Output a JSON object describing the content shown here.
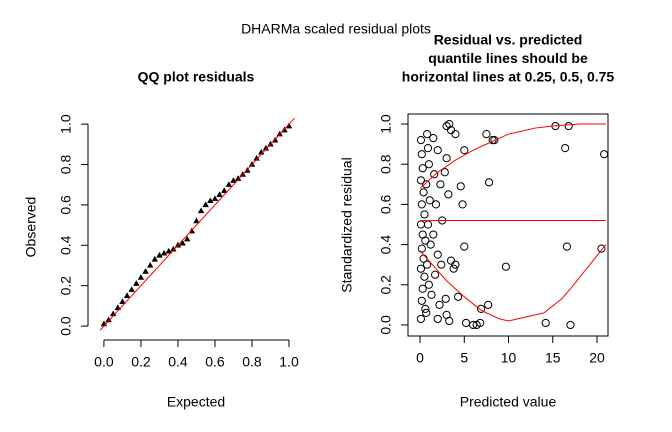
{
  "suptitle": "DHARMa scaled residual plots",
  "chart_data": [
    {
      "type": "scatter",
      "title": [
        "QQ plot residuals"
      ],
      "xlabel": "Expected",
      "ylabel": "Observed",
      "marker": "triangle",
      "color": "#000000",
      "frame": false,
      "x": [
        0.0,
        0.025,
        0.05,
        0.075,
        0.1,
        0.125,
        0.15,
        0.175,
        0.2,
        0.225,
        0.25,
        0.275,
        0.3,
        0.325,
        0.35,
        0.375,
        0.4,
        0.425,
        0.45,
        0.475,
        0.5,
        0.525,
        0.55,
        0.575,
        0.6,
        0.625,
        0.65,
        0.675,
        0.7,
        0.725,
        0.75,
        0.775,
        0.8,
        0.825,
        0.85,
        0.875,
        0.9,
        0.925,
        0.95,
        0.975,
        1.0
      ],
      "values": [
        0.01,
        0.03,
        0.06,
        0.09,
        0.12,
        0.15,
        0.18,
        0.21,
        0.24,
        0.27,
        0.3,
        0.33,
        0.35,
        0.36,
        0.37,
        0.38,
        0.4,
        0.41,
        0.43,
        0.47,
        0.52,
        0.57,
        0.6,
        0.62,
        0.63,
        0.65,
        0.67,
        0.7,
        0.72,
        0.73,
        0.75,
        0.77,
        0.8,
        0.83,
        0.86,
        0.88,
        0.9,
        0.92,
        0.95,
        0.97,
        0.99
      ],
      "lines": [
        {
          "color": "#ff0000",
          "x": [
            -0.02,
            1.03
          ],
          "values": [
            -0.02,
            1.03
          ]
        }
      ],
      "xlim": [
        -0.086,
        1.081
      ],
      "ylim": [
        -0.069,
        1.05
      ],
      "xticks": [
        {
          "value": 0,
          "label": "0.0"
        },
        0.2,
        0.4,
        0.6,
        0.8,
        {
          "value": 1,
          "label": "1.0"
        }
      ],
      "yticks": [
        {
          "value": 0,
          "label": "0.0"
        },
        0.2,
        0.4,
        0.6,
        0.8,
        {
          "value": 1,
          "label": "1.0"
        }
      ]
    },
    {
      "type": "scatter",
      "title": [
        "Residual vs. predicted",
        "quantile lines should be",
        "horizontal lines at 0.25, 0.5, 0.75"
      ],
      "xlabel": "Predicted value",
      "ylabel": "Standardized residual",
      "marker": "circle",
      "color": "#000000",
      "frame": true,
      "x": [
        0.1,
        0.2,
        0.3,
        0.1,
        0.4,
        0.2,
        0.5,
        0.1,
        0.3,
        0.6,
        0.2,
        0.4,
        0.1,
        0.5,
        0.3,
        0.2,
        0.6,
        0.1,
        0.8,
        0.9,
        1.0,
        0.7,
        1.1,
        0.9,
        1.2,
        0.8,
        1.0,
        1.3,
        0.7,
        1.5,
        1.6,
        1.8,
        1.5,
        2.0,
        1.7,
        2.2,
        2.0,
        2.3,
        2.5,
        2.4,
        2.0,
        3.0,
        3.3,
        3.5,
        3.0,
        2.8,
        3.2,
        4.0,
        3.5,
        3.8,
        4.0,
        2.9,
        3.0,
        3.3,
        4.6,
        4.8,
        5.0,
        5.0,
        4.3,
        5.2,
        6.0,
        6.4,
        6.8,
        6.9,
        7.5,
        7.8,
        7.7,
        8.2,
        8.4,
        9.7,
        15.3,
        16.4,
        16.6,
        16.8,
        17.0,
        14.2,
        20.8,
        20.5
      ],
      "values": [
        0.92,
        0.85,
        0.78,
        0.72,
        0.66,
        0.6,
        0.55,
        0.5,
        0.45,
        0.42,
        0.38,
        0.33,
        0.28,
        0.24,
        0.18,
        0.12,
        0.08,
        0.03,
        0.95,
        0.88,
        0.8,
        0.7,
        0.62,
        0.5,
        0.4,
        0.3,
        0.2,
        0.15,
        0.06,
        0.93,
        0.75,
        0.6,
        0.45,
        0.35,
        0.25,
        0.1,
        0.87,
        0.7,
        0.52,
        0.3,
        0.03,
        0.99,
        1.0,
        0.97,
        0.83,
        0.76,
        0.65,
        0.95,
        0.32,
        0.28,
        0.3,
        0.13,
        0.05,
        0.02,
        0.69,
        0.6,
        0.87,
        0.39,
        0.14,
        0.01,
        0.0,
        0.0,
        0.01,
        0.08,
        0.95,
        0.71,
        0.1,
        0.92,
        0.92,
        0.29,
        0.99,
        0.88,
        0.39,
        0.99,
        0.0,
        0.01,
        0.85,
        0.38
      ],
      "lines": [
        {
          "color": "#ff0000",
          "x": [
            0,
            1,
            2,
            4,
            6,
            8,
            10,
            13,
            15,
            18,
            21
          ],
          "values": [
            0.68,
            0.72,
            0.76,
            0.82,
            0.87,
            0.91,
            0.95,
            0.98,
            0.99,
            1.0,
            1.0
          ]
        },
        {
          "color": "#ff0000",
          "x": [
            0,
            21
          ],
          "values": [
            0.52,
            0.52
          ]
        },
        {
          "color": "#ff0000",
          "x": [
            0,
            1,
            3,
            5,
            7,
            9,
            10,
            12,
            14,
            16,
            17,
            19,
            21
          ],
          "values": [
            0.37,
            0.32,
            0.22,
            0.14,
            0.07,
            0.03,
            0.02,
            0.04,
            0.06,
            0.13,
            0.18,
            0.29,
            0.4
          ]
        }
      ],
      "xlim": [
        -1.36,
        21.24
      ],
      "ylim": [
        -0.055,
        1.05
      ],
      "xticks": [
        0,
        5,
        10,
        15,
        20
      ],
      "yticks": [
        {
          "value": 0,
          "label": "0.0"
        },
        0.2,
        0.4,
        0.6,
        0.8,
        {
          "value": 1,
          "label": "1.0"
        }
      ]
    }
  ]
}
